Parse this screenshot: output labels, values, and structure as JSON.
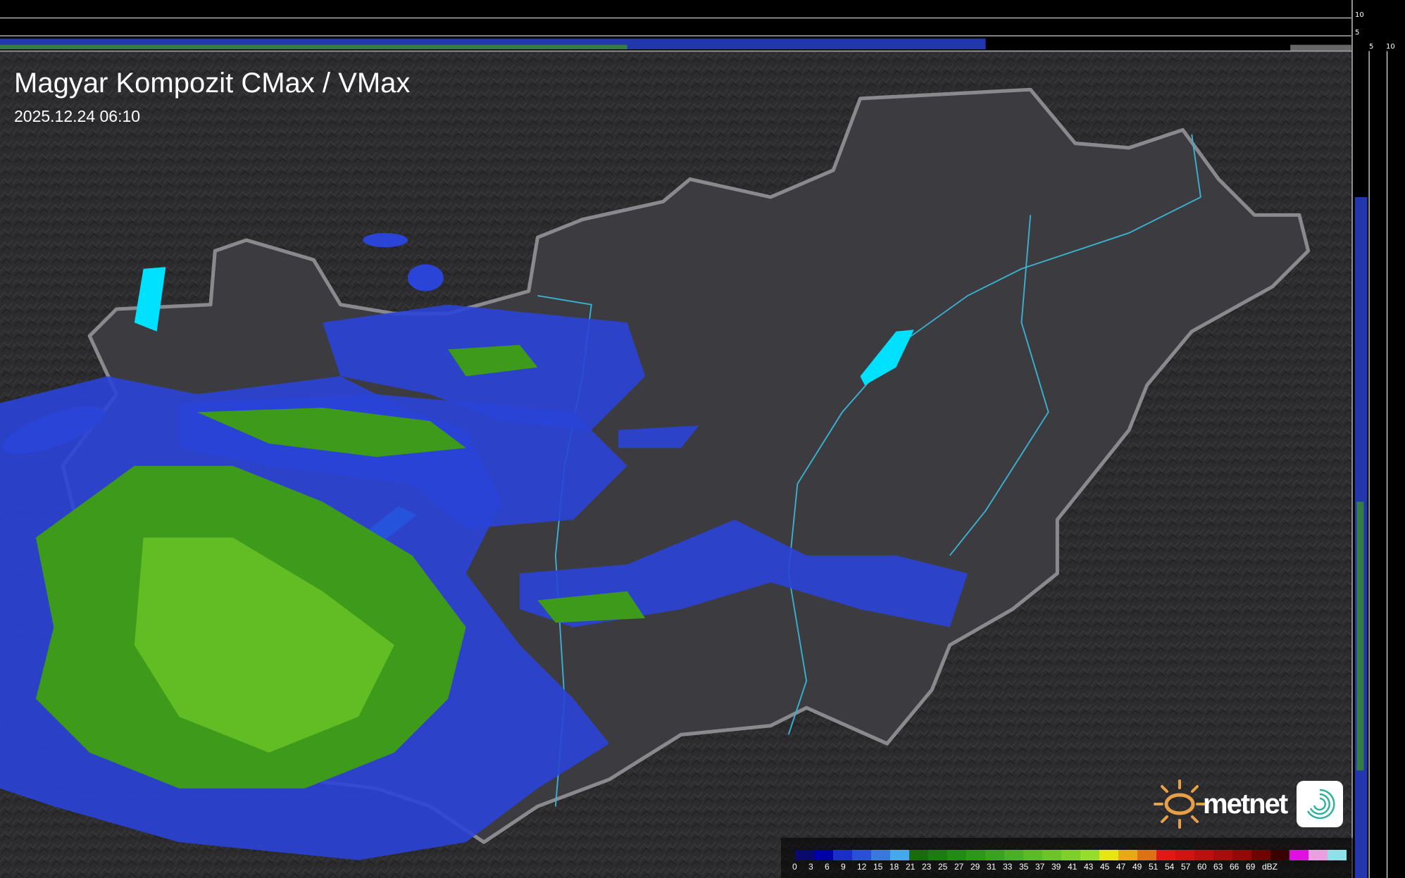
{
  "header": {
    "title": "Magyar Kompozit CMax / VMax",
    "timestamp": "2025.12.24 06:10"
  },
  "side_axes": {
    "top_right_labels": [
      "10",
      "5"
    ],
    "bottom_labels": [
      "5",
      "10"
    ]
  },
  "legend": {
    "unit": "dBZ",
    "labels": [
      "0",
      "3",
      "6",
      "9",
      "12",
      "15",
      "18",
      "21",
      "23",
      "25",
      "27",
      "29",
      "31",
      "33",
      "35",
      "37",
      "39",
      "41",
      "43",
      "45",
      "47",
      "49",
      "51",
      "54",
      "57",
      "60",
      "63",
      "66",
      "69"
    ],
    "colors": [
      "#0a0a6e",
      "#0000a8",
      "#1a2ec8",
      "#2a4fd8",
      "#3a78e0",
      "#44a8ec",
      "#1a6a10",
      "#1e7a12",
      "#248a16",
      "#2e961a",
      "#3aa21e",
      "#4cae22",
      "#5cba24",
      "#6cc426",
      "#7ed028",
      "#96dc2a",
      "#e6e614",
      "#e6aa14",
      "#e07014",
      "#e01818",
      "#d01414",
      "#bc1010",
      "#a80c0c",
      "#940808",
      "#700404",
      "#3a0202",
      "#e010e0",
      "#e8a0e0",
      "#90e0e8"
    ]
  },
  "branding": {
    "logo": "metnet"
  },
  "colors": {
    "background": "#2a2a2c",
    "country": "#3c3c40",
    "border": "#8a8a8e",
    "rivers": "#3ab0d0",
    "lakes": "#00e0ff",
    "radar_blue": "#2a44d8",
    "radar_green": "#3e9a1a"
  }
}
